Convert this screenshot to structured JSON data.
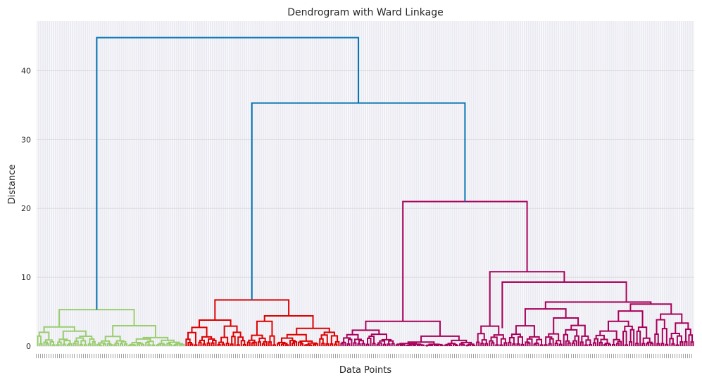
{
  "chart_data": {
    "type": "dendrogram",
    "title": "Dendrogram with Ward Linkage",
    "xlabel": "Data Points",
    "ylabel": "Distance",
    "ylim": [
      0,
      47.2
    ],
    "yticks": [
      0,
      10,
      20,
      30,
      40
    ],
    "grid": true,
    "background": "#EAEAF2",
    "leaf_count": 310,
    "clusters": [
      {
        "color": "#9ACD6E",
        "leaf_range": [
          0,
          69
        ]
      },
      {
        "color": "#DD0000",
        "leaf_range": [
          70,
          142
        ]
      },
      {
        "color": "#A8005A",
        "leaf_range": [
          143,
          309
        ]
      }
    ],
    "links": [
      {
        "x1": 0,
        "x2": 1,
        "height": 44.8,
        "color": "#0072B2"
      },
      {
        "x1": 0,
        "x2": 1,
        "height": 35.3,
        "color": "#0072B2"
      },
      {
        "x1": 0,
        "x2": 1,
        "height": 21.0,
        "color": "#A8005A"
      },
      {
        "x1": 0,
        "x2": 1,
        "height": 10.8,
        "color": "#A8005A"
      },
      {
        "x1": 0,
        "x2": 1,
        "height": 9.3,
        "color": "#A8005A"
      },
      {
        "x1": 0,
        "x2": 1,
        "height": 6.7,
        "color": "#DD0000"
      },
      {
        "x1": 0,
        "x2": 1,
        "height": 6.4,
        "color": "#A8005A"
      },
      {
        "x1": 0,
        "x2": 1,
        "height": 6.1,
        "color": "#A8005A"
      },
      {
        "x1": 0,
        "x2": 1,
        "height": 5.4,
        "color": "#A8005A"
      },
      {
        "x1": 0,
        "x2": 1,
        "height": 5.3,
        "color": "#9ACD6E"
      },
      {
        "x1": 0,
        "x2": 1,
        "height": 4.7,
        "color": "#A8005A"
      },
      {
        "x1": 0,
        "x2": 1,
        "height": 4.5,
        "color": "#9ACD6E"
      },
      {
        "x1": 0,
        "x2": 1,
        "height": 4.2,
        "color": "#DD0000"
      },
      {
        "x1": 0,
        "x2": 1,
        "height": 4.1,
        "color": "#9ACD6E"
      },
      {
        "x1": 0,
        "x2": 1,
        "height": 3.6,
        "color": "#A8005A"
      },
      {
        "x1": 0,
        "x2": 1,
        "height": 3.1,
        "color": "#DD0000"
      },
      {
        "x1": 0,
        "x2": 1,
        "height": 2.9,
        "color": "#A8005A"
      },
      {
        "x1": 0,
        "x2": 1,
        "height": 2.6,
        "color": "#A8005A"
      }
    ]
  }
}
